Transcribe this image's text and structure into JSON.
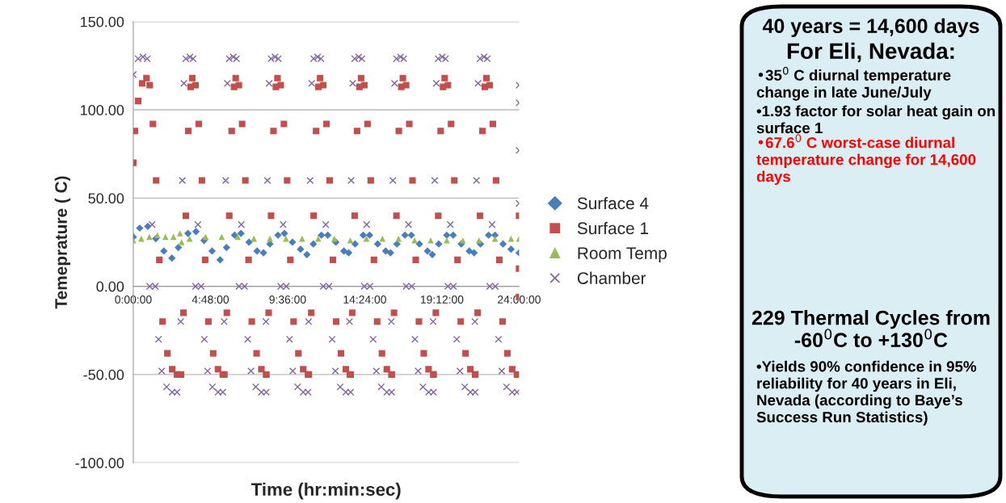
{
  "chart_data": [
    {
      "type": "scatter",
      "xlabel": "Time (hr:min:sec)",
      "ylabel": "Temeprature ( C)",
      "xlim": [
        0,
        24
      ],
      "ylim": [
        -100,
        150
      ],
      "xticks": [
        {
          "value": 0,
          "label": "0:00:00"
        },
        {
          "value": 4.8,
          "label": "4:48:00"
        },
        {
          "value": 9.6,
          "label": "9:36:00"
        },
        {
          "value": 14.4,
          "label": "14:24:00"
        },
        {
          "value": 19.2,
          "label": "19:12:00"
        },
        {
          "value": 24,
          "label": "24:00:00"
        }
      ],
      "yticks": [
        {
          "value": -100,
          "label": "-100.00"
        },
        {
          "value": -50,
          "label": "-50.00"
        },
        {
          "value": 0,
          "label": "0.00"
        },
        {
          "value": 50,
          "label": "50.00"
        },
        {
          "value": 100,
          "label": "100.00"
        },
        {
          "value": 150,
          "label": "150.00"
        }
      ],
      "grid": "y",
      "legend": "right",
      "series": [
        {
          "name": "Surface 4",
          "color": "#4a7ebb",
          "marker": "diamond",
          "x": [
            0,
            0.4,
            0.9,
            1.4,
            1.9,
            2.4,
            2.8,
            3.4,
            3.9,
            4.4,
            4.9,
            5.4,
            5.8,
            6.3,
            6.7,
            7.2,
            7.7,
            8.1,
            8.5,
            9.0,
            9.4,
            9.9,
            10.4,
            10.8,
            11.2,
            11.7,
            12.1,
            12.6,
            13.1,
            13.4,
            13.8,
            14.3,
            14.7,
            15.2,
            15.7,
            16.0,
            16.4,
            16.9,
            17.3,
            17.8,
            18.3,
            18.6,
            19.0,
            19.5,
            19.9,
            20.4,
            20.9,
            21.2,
            21.6,
            22.1,
            22.5,
            23.0,
            23.5,
            24.0
          ],
          "values": [
            28,
            33,
            34,
            27,
            20,
            16,
            22,
            30,
            31,
            26,
            20,
            15,
            22,
            29,
            30,
            25,
            20,
            19,
            24,
            29,
            30,
            25,
            21,
            18,
            24,
            29,
            29,
            25,
            20,
            19,
            24,
            29,
            29,
            24,
            20,
            19,
            24,
            29,
            29,
            24,
            20,
            18,
            24,
            29,
            29,
            24,
            20,
            19,
            24,
            29,
            29,
            24,
            21,
            19
          ]
        },
        {
          "name": "Surface 1",
          "color": "#c0504d",
          "marker": "square",
          "x": [
            0,
            0.1,
            0.3,
            0.55,
            0.82,
            1.02,
            1.22,
            1.42,
            1.62,
            1.82,
            2.12,
            2.42,
            2.72,
            2.97,
            3.12,
            3.27,
            3.42,
            3.57,
            3.67,
            3.87,
            4.07,
            4.27,
            4.47,
            4.67,
            4.97,
            5.27,
            5.57,
            5.67,
            5.82,
            5.97,
            6.12,
            6.27,
            6.37,
            6.57,
            6.77,
            6.97,
            7.17,
            7.37,
            7.67,
            7.97,
            8.27,
            8.27,
            8.42,
            8.57,
            8.72,
            8.87,
            8.97,
            9.17,
            9.37,
            9.57,
            9.77,
            9.97,
            10.27,
            10.57,
            10.87,
            10.92,
            11.07,
            11.22,
            11.37,
            11.52,
            11.62,
            11.82,
            12.02,
            12.22,
            12.42,
            12.62,
            12.92,
            13.22,
            13.52,
            13.47,
            13.62,
            13.77,
            13.92,
            14.07,
            14.17,
            14.37,
            14.57,
            14.77,
            14.97,
            15.17,
            15.47,
            15.77,
            16.07,
            16.07,
            16.22,
            16.37,
            16.52,
            16.67,
            16.77,
            16.97,
            17.17,
            17.37,
            17.57,
            17.77,
            18.07,
            18.37,
            18.67,
            18.67,
            18.82,
            18.97,
            19.12,
            19.27,
            19.37,
            19.57,
            19.77,
            19.97,
            20.17,
            20.37,
            20.67,
            20.97,
            21.27,
            21.27,
            21.42,
            21.57,
            21.72,
            21.87,
            21.97,
            22.17,
            22.37,
            22.57,
            22.77,
            22.97,
            23.27,
            23.57,
            23.87,
            24,
            24,
            24
          ],
          "values": [
            70,
            88,
            105,
            115,
            118,
            114,
            92,
            60,
            15,
            -20,
            -38,
            -47,
            -50,
            -50,
            -15,
            40,
            88,
            113,
            118,
            114,
            92,
            60,
            15,
            -20,
            -38,
            -47,
            -50,
            -50,
            -15,
            40,
            88,
            113,
            118,
            114,
            92,
            60,
            15,
            -20,
            -38,
            -47,
            -50,
            -50,
            -15,
            40,
            88,
            113,
            118,
            114,
            92,
            60,
            15,
            -20,
            -38,
            -47,
            -50,
            -50,
            -15,
            40,
            88,
            113,
            118,
            114,
            92,
            60,
            15,
            -20,
            -38,
            -47,
            -50,
            -50,
            -15,
            40,
            88,
            113,
            118,
            114,
            92,
            60,
            15,
            -20,
            -38,
            -47,
            -50,
            -50,
            -15,
            40,
            88,
            113,
            118,
            114,
            92,
            60,
            15,
            -20,
            -38,
            -47,
            -50,
            -50,
            -15,
            40,
            88,
            113,
            118,
            114,
            92,
            60,
            15,
            -20,
            -38,
            -47,
            -50,
            -50,
            -15,
            40,
            88,
            113,
            118,
            114,
            92,
            60,
            15,
            -20,
            -38,
            -47,
            -50,
            -6,
            10,
            40
          ]
        },
        {
          "name": "Room Temp",
          "color": "#9bbb59",
          "marker": "triangle",
          "x": [
            0,
            0.5,
            1.0,
            1.5,
            2.0,
            2.5,
            2.9,
            3.0,
            3.5,
            4.5,
            5.5,
            6.5,
            7.5,
            8.5,
            9.5,
            10.5,
            11.5,
            12.5,
            13.5,
            14.5,
            15.5,
            16.5,
            17.5,
            18.5,
            19.5,
            20.5,
            21.5,
            22.5,
            23.5,
            24
          ],
          "values": [
            26,
            27,
            28,
            29,
            28,
            28,
            30,
            25,
            27,
            28,
            28,
            28,
            27,
            27,
            27,
            27,
            27,
            27,
            26,
            27,
            27,
            27,
            26,
            26,
            26,
            26,
            26,
            27,
            27,
            27
          ]
        },
        {
          "name": "Chamber",
          "color": "#8064a2",
          "marker": "cross",
          "x": [
            0,
            0.3,
            0.6,
            0.87,
            1.02,
            1.17,
            1.37,
            1.57,
            1.77,
            2.07,
            2.42,
            2.72,
            2.95,
            3.05,
            3.15,
            3.27,
            3.52,
            3.72,
            3.87,
            4.02,
            4.22,
            4.42,
            4.62,
            4.92,
            5.27,
            5.57,
            5.65,
            5.75,
            5.85,
            5.97,
            6.22,
            6.42,
            6.57,
            6.72,
            6.92,
            7.12,
            7.32,
            7.62,
            7.97,
            8.27,
            8.25,
            8.35,
            8.45,
            8.57,
            8.82,
            9.02,
            9.17,
            9.32,
            9.52,
            9.72,
            9.92,
            10.22,
            10.57,
            10.87,
            10.9,
            11.0,
            11.1,
            11.22,
            11.47,
            11.67,
            11.82,
            11.97,
            12.17,
            12.37,
            12.57,
            12.87,
            13.22,
            13.52,
            13.45,
            13.55,
            13.65,
            13.77,
            14.02,
            14.22,
            14.37,
            14.52,
            14.72,
            14.92,
            15.12,
            15.42,
            15.77,
            16.07,
            16.05,
            16.15,
            16.25,
            16.37,
            16.62,
            16.82,
            16.97,
            17.12,
            17.32,
            17.52,
            17.72,
            18.02,
            18.37,
            18.67,
            18.65,
            18.75,
            18.85,
            18.97,
            19.22,
            19.42,
            19.57,
            19.72,
            19.92,
            20.12,
            20.32,
            20.62,
            20.97,
            21.27,
            21.25,
            21.35,
            21.45,
            21.57,
            21.82,
            22.02,
            22.17,
            22.32,
            22.52,
            22.72,
            22.92,
            23.22,
            23.57,
            23.87,
            24,
            24,
            24,
            24
          ],
          "values": [
            120,
            129,
            130,
            129,
            0,
            35,
            0,
            -30,
            -48,
            -57,
            -60,
            -60,
            -20,
            60,
            115,
            129,
            130,
            129,
            0,
            35,
            0,
            -30,
            -48,
            -57,
            -60,
            -60,
            -20,
            60,
            115,
            129,
            130,
            129,
            0,
            35,
            0,
            -30,
            -48,
            -57,
            -60,
            -60,
            -20,
            60,
            115,
            129,
            130,
            129,
            0,
            35,
            0,
            -30,
            -48,
            -57,
            -60,
            -60,
            -20,
            60,
            115,
            129,
            130,
            129,
            0,
            35,
            0,
            -30,
            -48,
            -57,
            -60,
            -60,
            -20,
            60,
            115,
            129,
            130,
            129,
            0,
            35,
            0,
            -30,
            -48,
            -57,
            -60,
            -60,
            -20,
            60,
            115,
            129,
            130,
            129,
            0,
            35,
            0,
            -30,
            -48,
            -57,
            -60,
            -60,
            -20,
            60,
            115,
            129,
            130,
            129,
            0,
            35,
            0,
            -30,
            -48,
            -57,
            -60,
            -60,
            -20,
            60,
            115,
            129,
            130,
            129,
            0,
            35,
            0,
            -30,
            -48,
            -57,
            -60,
            -60,
            47,
            77,
            104,
            114
          ]
        }
      ]
    },
    {
      "type": "other",
      "title": "40 years = 14,600 days",
      "subtitle": "For Eli, Nevada:",
      "annotations": [
        "•35$^{0}$ C diurnal temperature change in late June/July",
        "•1.93 factor for solar heat gain on surface 1",
        "•67.6$^{0}$ C worst-case diurnal temperature change for 14,600 days"
      ],
      "colors": [
        "#000000",
        "#000000",
        "#ff0000"
      ]
    },
    {
      "type": "other",
      "title": "229 Thermal Cycles from -60$^{0}$C to +130$^{0}$C",
      "annotations": [
        "•Yields 90% confidence in 95% reliability for 40 years in Eli, Nevada (according to Baye’s Success Run Statistics)"
      ],
      "colors": [
        "#000000"
      ]
    }
  ]
}
